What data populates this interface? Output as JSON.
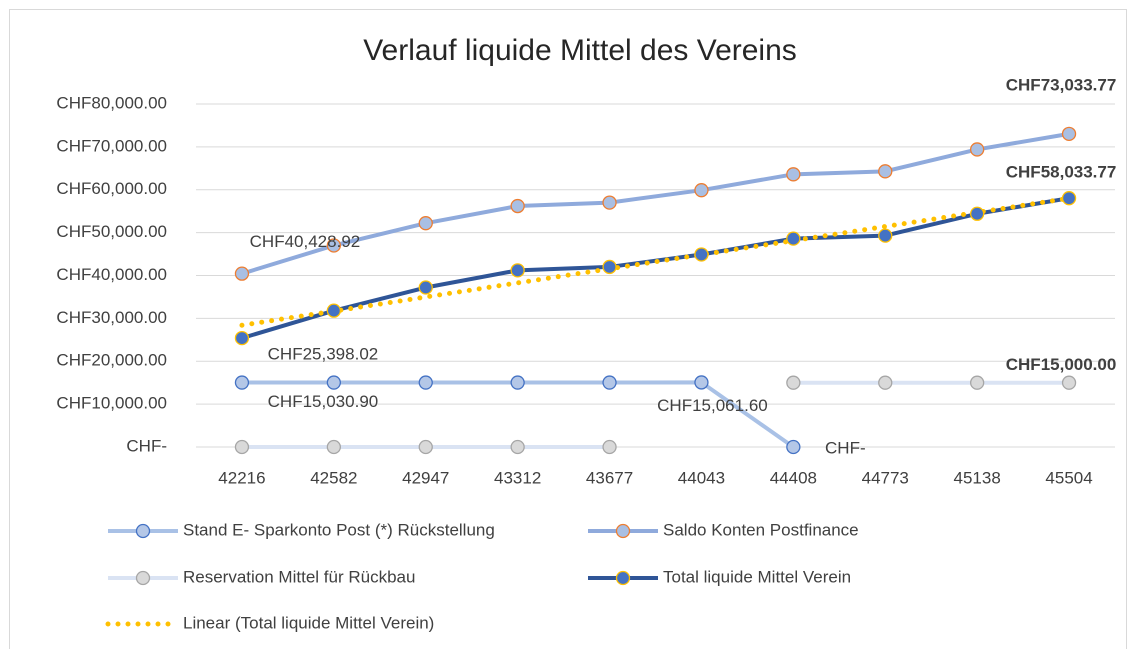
{
  "chart_data": {
    "type": "line",
    "title": "Verlauf liquide Mittel des Vereins",
    "categories": [
      "42216",
      "42582",
      "42947",
      "43312",
      "43677",
      "44043",
      "44408",
      "44773",
      "45138",
      "45504"
    ],
    "ylim": [
      0,
      80000
    ],
    "yticks": [
      {
        "value": 0,
        "label": "CHF-"
      },
      {
        "value": 10000,
        "label": "CHF10,000.00"
      },
      {
        "value": 20000,
        "label": "CHF20,000.00"
      },
      {
        "value": 30000,
        "label": "CHF30,000.00"
      },
      {
        "value": 40000,
        "label": "CHF40,000.00"
      },
      {
        "value": 50000,
        "label": "CHF50,000.00"
      },
      {
        "value": 60000,
        "label": "CHF60,000.00"
      },
      {
        "value": 70000,
        "label": "CHF70,000.00"
      },
      {
        "value": 80000,
        "label": "CHF80,000.00"
      }
    ],
    "grid": true,
    "legend": "bottom",
    "series": [
      {
        "name": "Stand E- Sparkonto Post (*) Rückstellung",
        "color": "#a9c1e6",
        "marker_fill": "#b4c7e7",
        "marker_edge": "#4472c4",
        "values": [
          15030.9,
          15030.9,
          15030.9,
          15030.9,
          15030.9,
          15061.6,
          0,
          null,
          null,
          null
        ],
        "value_labels": [
          "CHF15,030.90",
          null,
          null,
          null,
          null,
          "CHF15,061.60",
          "CHF-",
          null,
          null,
          null
        ]
      },
      {
        "name": "Saldo Konten Postfinance",
        "color": "#8faadc",
        "marker_fill": "#a9bfe3",
        "marker_edge": "#ed7d31",
        "values": [
          40428.92,
          47000,
          52200,
          56200,
          57000,
          59900,
          63600,
          64300,
          69400,
          73033.77
        ],
        "value_labels": [
          "CHF40,428.92",
          null,
          null,
          null,
          null,
          null,
          null,
          null,
          null,
          "CHF73,033.77"
        ]
      },
      {
        "name": "Reservation Mittel für Rückbau",
        "color": "#dae3f3",
        "marker_fill": "#d9d9d9",
        "marker_edge": "#a6a6a6",
        "values": [
          0,
          0,
          0,
          0,
          0,
          null,
          15000,
          15000,
          15000,
          15000
        ],
        "value_labels": [
          null,
          null,
          null,
          null,
          null,
          null,
          null,
          null,
          null,
          "CHF15,000.00"
        ]
      },
      {
        "name": "Total liquide Mittel Verein",
        "color": "#2f5597",
        "marker_fill": "#4472c4",
        "marker_edge": "#ffc000",
        "values": [
          25398.02,
          31800,
          37200,
          41200,
          42000,
          44900,
          48600,
          49300,
          54400,
          58033.77
        ],
        "value_labels": [
          "CHF25,398.02",
          null,
          null,
          null,
          null,
          null,
          null,
          null,
          null,
          "CHF58,033.77"
        ]
      },
      {
        "name": "Linear (Total liquide Mittel Verein)",
        "color": "#ffc000",
        "style": "dotted",
        "values": [
          28400,
          31690,
          34980,
          38270,
          41560,
          44840,
          48130,
          51420,
          54710,
          58000
        ]
      }
    ]
  }
}
